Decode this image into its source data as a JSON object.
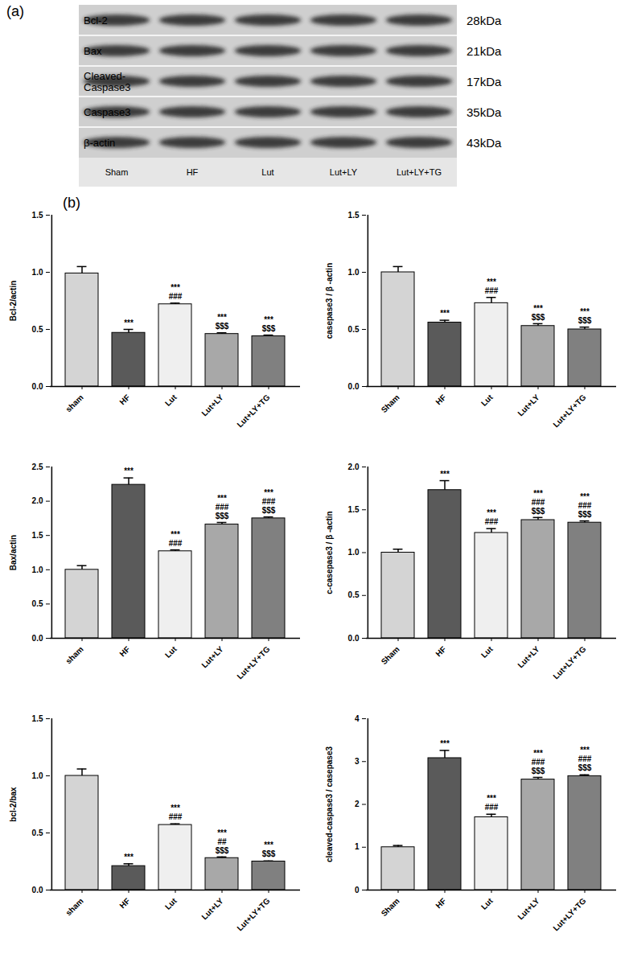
{
  "blot": {
    "panel": "(a)",
    "proteins": [
      "Bcl-2",
      "Bax",
      "Cleaved-\nCaspase3",
      "Caspase3",
      "β-actin"
    ],
    "sizes": [
      "28kDa",
      "21kDa",
      "17kDa",
      "35kDa",
      "43kDa"
    ],
    "lanes": [
      "Sham",
      "HF",
      "Lut",
      "Lut+LY",
      "Lut+LY+TG"
    ]
  },
  "panel_b": "(b)",
  "chart_data": [
    {
      "type": "bar",
      "y_label": "Bcl-2/actin",
      "categories": [
        "sham",
        "HF",
        "Lut",
        "Lut+LY",
        "Lut+LY+TG"
      ],
      "values": [
        0.99,
        0.47,
        0.72,
        0.46,
        0.44
      ],
      "errors": [
        0.06,
        0.03,
        0.01,
        0.01,
        0.01
      ],
      "annotations": [
        [],
        [
          "***"
        ],
        [
          "***",
          "###"
        ],
        [
          "***",
          "$$$"
        ],
        [
          "***",
          "$$$"
        ]
      ],
      "colors": [
        "#d4d4d4",
        "#5a5a5a",
        "#efefef",
        "#a8a8a8",
        "#808080"
      ],
      "ylim": [
        0,
        1.5
      ],
      "yticks": [
        {
          "value": 0,
          "label": "0.0"
        },
        {
          "value": 0.5,
          "label": "0.5"
        },
        {
          "value": 1,
          "label": "1.0"
        },
        {
          "value": 1.5,
          "label": "1.5"
        }
      ]
    },
    {
      "type": "bar",
      "y_label": "casepase3 / β -actin",
      "categories": [
        "Sham",
        "HF",
        "Lut",
        "Lut+LY",
        "Lut+LY+TG"
      ],
      "values": [
        1.0,
        0.56,
        0.73,
        0.53,
        0.5
      ],
      "errors": [
        0.05,
        0.02,
        0.05,
        0.02,
        0.02
      ],
      "annotations": [
        [],
        [
          "***"
        ],
        [
          "***",
          "###"
        ],
        [
          "***",
          "$$$"
        ],
        [
          "***",
          "$$$"
        ]
      ],
      "colors": [
        "#d4d4d4",
        "#5a5a5a",
        "#efefef",
        "#a8a8a8",
        "#808080"
      ],
      "ylim": [
        0,
        1.5
      ],
      "yticks": [
        {
          "value": 0,
          "label": "0.0"
        },
        {
          "value": 0.5,
          "label": "0.5"
        },
        {
          "value": 1,
          "label": "1.0"
        },
        {
          "value": 1.5,
          "label": "1.5"
        }
      ]
    },
    {
      "type": "bar",
      "y_label": "Bax/actin",
      "categories": [
        "sham",
        "HF",
        "Lut",
        "Lut+LY",
        "Lut+LY+TG"
      ],
      "values": [
        1.0,
        2.24,
        1.27,
        1.66,
        1.75
      ],
      "errors": [
        0.06,
        0.1,
        0.02,
        0.03,
        0.02
      ],
      "annotations": [
        [],
        [
          "***"
        ],
        [
          "***",
          "###"
        ],
        [
          "***",
          "###",
          "$$$"
        ],
        [
          "***",
          "###",
          "$$$"
        ]
      ],
      "colors": [
        "#d4d4d4",
        "#5a5a5a",
        "#efefef",
        "#a8a8a8",
        "#808080"
      ],
      "ylim": [
        0,
        2.5
      ],
      "yticks": [
        {
          "value": 0,
          "label": "0.0"
        },
        {
          "value": 0.5,
          "label": "0.5"
        },
        {
          "value": 1,
          "label": "1.0"
        },
        {
          "value": 1.5,
          "label": "1.5"
        },
        {
          "value": 2,
          "label": "2.0"
        },
        {
          "value": 2.5,
          "label": "2.5"
        }
      ]
    },
    {
      "type": "bar",
      "y_label": "c-casepase3 / β -actin",
      "categories": [
        "Sham",
        "HF",
        "Lut",
        "Lut+LY",
        "Lut+LY+TG"
      ],
      "values": [
        1.0,
        1.73,
        1.23,
        1.38,
        1.35
      ],
      "errors": [
        0.04,
        0.11,
        0.05,
        0.03,
        0.02
      ],
      "annotations": [
        [],
        [
          "***"
        ],
        [
          "***",
          "###"
        ],
        [
          "***",
          "###",
          "$$$"
        ],
        [
          "***",
          "###",
          "$$$"
        ]
      ],
      "colors": [
        "#d4d4d4",
        "#5a5a5a",
        "#efefef",
        "#a8a8a8",
        "#808080"
      ],
      "ylim": [
        0,
        2.0
      ],
      "yticks": [
        {
          "value": 0,
          "label": "0.0"
        },
        {
          "value": 0.5,
          "label": "0.5"
        },
        {
          "value": 1,
          "label": "1.0"
        },
        {
          "value": 1.5,
          "label": "1.5"
        },
        {
          "value": 2,
          "label": "2.0"
        }
      ]
    },
    {
      "type": "bar",
      "y_label": "bcl-2/bax",
      "categories": [
        "sham",
        "HF",
        "Lut",
        "Lut+LY",
        "Lut+LY+TG"
      ],
      "values": [
        1.0,
        0.21,
        0.57,
        0.28,
        0.25
      ],
      "errors": [
        0.06,
        0.02,
        0.01,
        0.01,
        0.005
      ],
      "annotations": [
        [],
        [
          "***"
        ],
        [
          "***",
          "###"
        ],
        [
          "***",
          "##",
          "$$$"
        ],
        [
          "***",
          "$$$"
        ]
      ],
      "colors": [
        "#d4d4d4",
        "#5a5a5a",
        "#efefef",
        "#a8a8a8",
        "#808080"
      ],
      "ylim": [
        0,
        1.5
      ],
      "yticks": [
        {
          "value": 0,
          "label": "0.0"
        },
        {
          "value": 0.5,
          "label": "0.5"
        },
        {
          "value": 1,
          "label": "1.0"
        },
        {
          "value": 1.5,
          "label": "1.5"
        }
      ]
    },
    {
      "type": "bar",
      "y_label": "cleaved-caspase3 / casepase3",
      "categories": [
        "Sham",
        "HF",
        "Lut",
        "Lut+LY",
        "Lut+LY+TG"
      ],
      "values": [
        1.0,
        3.08,
        1.7,
        2.58,
        2.66
      ],
      "errors": [
        0.04,
        0.18,
        0.07,
        0.05,
        0.03
      ],
      "annotations": [
        [],
        [
          "***"
        ],
        [
          "***",
          "###"
        ],
        [
          "***",
          "###",
          "$$$"
        ],
        [
          "***",
          "###",
          "$$$"
        ]
      ],
      "colors": [
        "#d4d4d4",
        "#5a5a5a",
        "#efefef",
        "#a8a8a8",
        "#808080"
      ],
      "ylim": [
        0,
        4
      ],
      "yticks": [
        0,
        1,
        2,
        3,
        4
      ]
    }
  ]
}
